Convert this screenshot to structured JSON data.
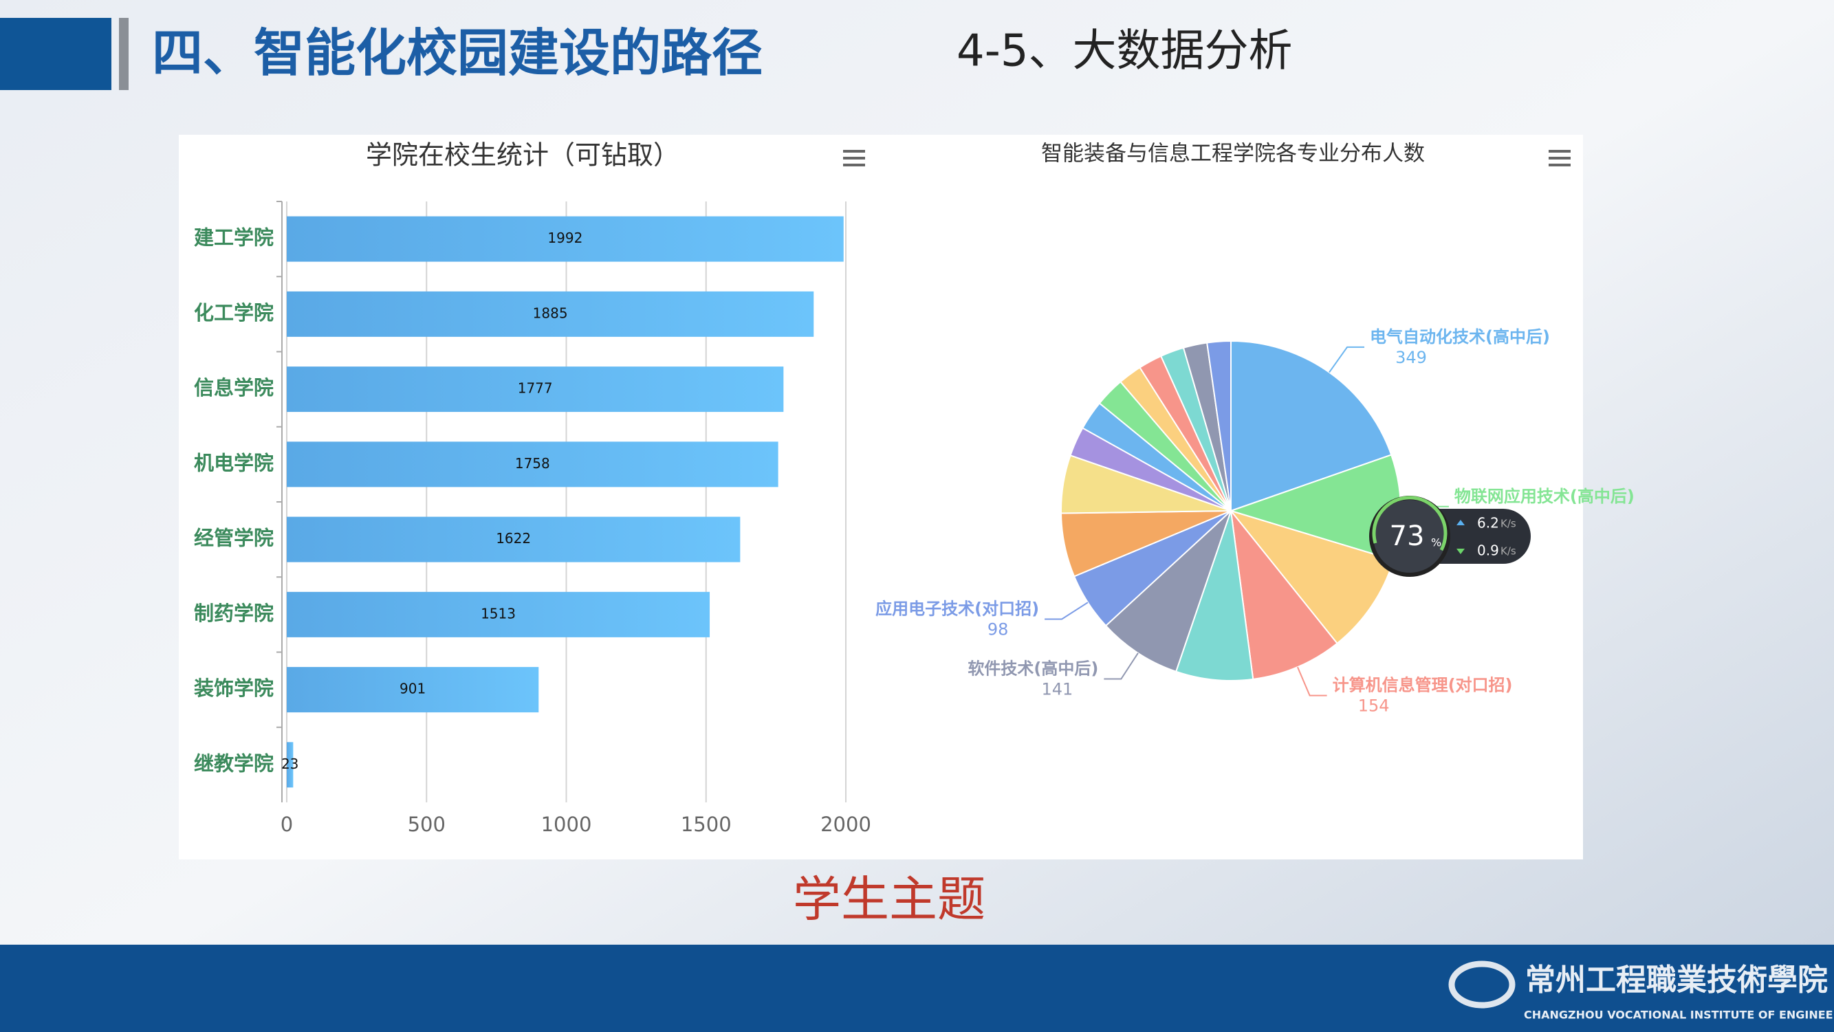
{
  "header": {
    "title": "四、智能化校园建设的路径",
    "subtitle": "4-5、大数据分析"
  },
  "footer": {
    "theme": "学生主题",
    "logo_cn": "常州工程職業技術學院",
    "logo_en": "CHANGZHOU VOCATIONAL INSTITUTE OF ENGINEERING"
  },
  "overlay": {
    "percent": "73",
    "percent_unit": "%",
    "up": "6.2",
    "down": "0.9",
    "rate_unit": "K/s"
  },
  "chart_data": [
    {
      "type": "hbar",
      "title": "学院在校生统计（可钻取）",
      "categories": [
        "建工学院",
        "化工学院",
        "信息学院",
        "机电学院",
        "经管学院",
        "制药学院",
        "装饰学院",
        "继教学院"
      ],
      "values": [
        1992,
        1885,
        1777,
        1758,
        1622,
        1513,
        901,
        23
      ],
      "color": "#63b8f2",
      "xlim": [
        0,
        2000
      ],
      "xticks": [
        0,
        500,
        1000,
        1500,
        2000
      ],
      "grid": true
    },
    {
      "type": "pie",
      "title": "智能装备与信息工程学院各专业分布人数",
      "categories": [
        "电气自动化技术(高中后)",
        "物联网应用技术(高中后)",
        null,
        "计算机信息管理(对口招)",
        null,
        "软件技术(高中后)",
        "应用电子技术(对口招)",
        null,
        null,
        null,
        null,
        null,
        null,
        null,
        null,
        null,
        null
      ],
      "values": [
        349,
        178,
        170,
        154,
        130,
        141,
        98,
        108,
        98,
        50,
        50,
        50,
        40,
        40,
        40,
        40,
        40
      ],
      "colors": [
        "#6cb5ef",
        "#84e594",
        "#fbd07f",
        "#f7958a",
        "#7dd9d2",
        "#9097b0",
        "#7b9be6",
        "#f4a862",
        "#f5e08a",
        "#a592e0",
        "#6cb5ef",
        "#84e594",
        "#fbd07f",
        "#f7958a",
        "#7dd9d2",
        "#9097b0",
        "#7b9be6"
      ]
    }
  ]
}
